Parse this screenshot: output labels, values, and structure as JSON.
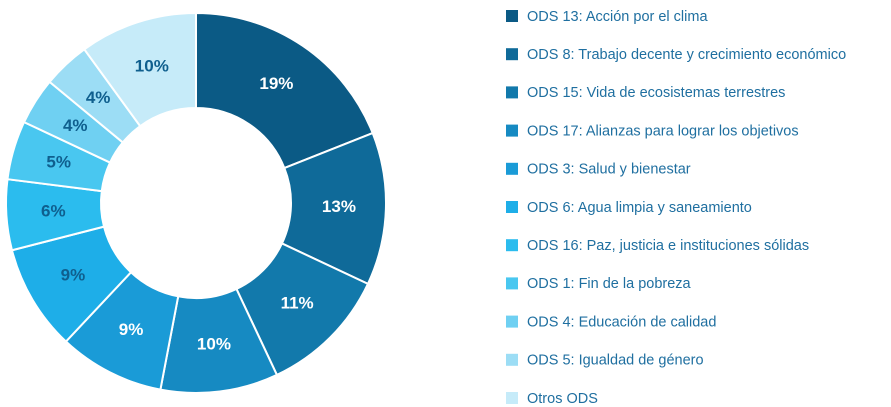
{
  "chart_data": {
    "type": "donut",
    "categories": [
      "ODS 13: Acción por el clima",
      "ODS 8: Trabajo decente y crecimiento económico",
      "ODS 15: Vida de ecosistemas terrestres",
      "ODS 17: Alianzas para lograr los objetivos",
      "ODS 3: Salud y bienestar",
      "ODS 6: Agua limpia y saneamiento",
      "ODS 16: Paz, justicia e instituciones sólidas",
      "ODS 1: Fin de la pobreza",
      "ODS 4: Educación de calidad",
      "ODS 5: Igualdad de género",
      "Otros ODS"
    ],
    "values": [
      19,
      13,
      11,
      10,
      9,
      9,
      6,
      5,
      4,
      4,
      10
    ],
    "value_labels": [
      "19%",
      "13%",
      "11%",
      "10%",
      "9%",
      "9%",
      "6%",
      "5%",
      "4%",
      "4%",
      "10%"
    ],
    "colors": [
      "#0b5a85",
      "#0f6a99",
      "#1279ab",
      "#168ac2",
      "#1a9bd7",
      "#1eaee8",
      "#2bbcee",
      "#49c7f0",
      "#6fd0f2",
      "#9cddf5",
      "#c6ebf9"
    ],
    "legend": "right"
  }
}
